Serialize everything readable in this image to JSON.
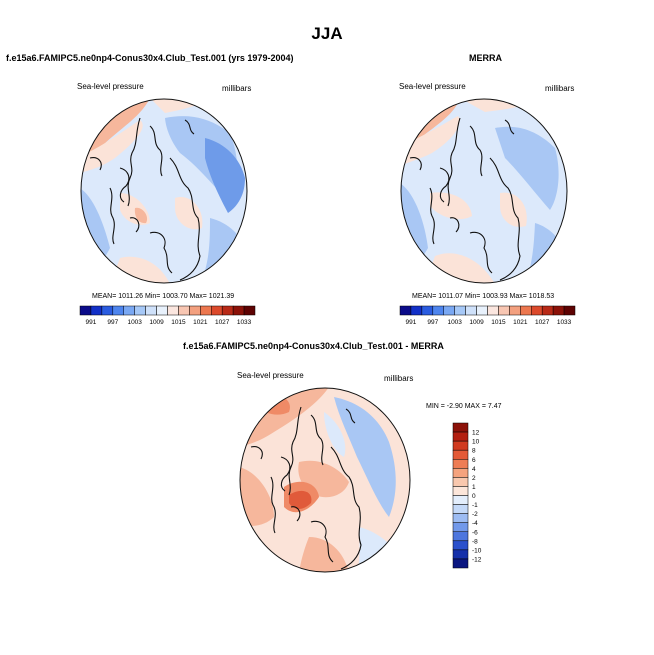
{
  "figure": {
    "title": "JJA"
  },
  "panels": [
    {
      "title": "f.e15a6.FAMIPC5.ne0np4-Conus30x4.Club_Test.001 (yrs 1979-2004)",
      "left_label": "Sea-level pressure",
      "right_label": "millibars",
      "stats": "MEAN= 1011.26   Min= 1003.70   Max= 1021.39"
    },
    {
      "title": "MERRA",
      "left_label": "Sea-level pressure",
      "right_label": "millibars",
      "stats": "MEAN= 1011.07   Min= 1003.93   Max= 1018.53"
    },
    {
      "title": "f.e15a6.FAMIPC5.ne0np4-Conus30x4.Club_Test.001 - MERRA",
      "left_label": "Sea-level pressure",
      "right_label": "millibars",
      "stats": "MIN =  -2.90 MAX =   7.47"
    }
  ],
  "colorbar_abs": {
    "tick_labels": [
      "991",
      "997",
      "1003",
      "1009",
      "1015",
      "1021",
      "1027",
      "1033"
    ],
    "colors": [
      "#0b0c8a",
      "#1230c8",
      "#2a5ce0",
      "#4e85ee",
      "#7aa8f3",
      "#a6c8f7",
      "#cfe1fa",
      "#e8f1fc",
      "#fbe6df",
      "#f8c6b2",
      "#f3a07f",
      "#ec774f",
      "#dc4a2c",
      "#b82a17",
      "#8c1209",
      "#5e0202"
    ]
  },
  "colorbar_diff": {
    "tick_labels": [
      "12",
      "10",
      "8",
      "6",
      "4",
      "2",
      "1",
      "0",
      "-1",
      "-2",
      "-4",
      "-6",
      "-8",
      "-10",
      "-12"
    ],
    "colors": [
      "#8c1209",
      "#b31f10",
      "#d13a1f",
      "#e45a37",
      "#ee7d55",
      "#f5a37e",
      "#f9c8ae",
      "#fce6da",
      "#e3eefc",
      "#c4d9f8",
      "#9dbcf3",
      "#7299ea",
      "#4d76de",
      "#2a50cc",
      "#1530aa",
      "#0a1680"
    ]
  },
  "map_fill_colors": {
    "base": "#dce9fb",
    "blue_mid": "#a9c7f4",
    "blue_dark": "#6e9be9",
    "warm_light": "#fbe3d8",
    "warm_mid": "#f6b79c",
    "warm_strong": "#ef8a66",
    "warm_deep": "#e05a3a",
    "coast": "#111111"
  }
}
